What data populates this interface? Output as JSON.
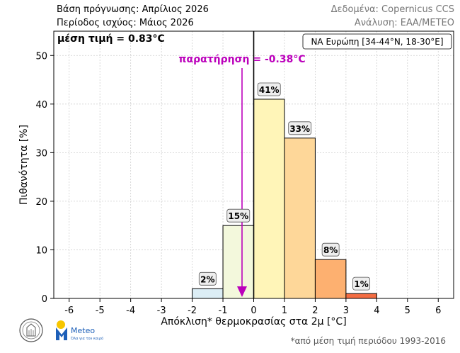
{
  "header": {
    "base_label": "Βάση πρόγνωσης: Απρίλιος 2026",
    "period_label": "Περίοδος ισχύος: Μάιος 2026",
    "data_source": "Δεδομένα: Copernicus CCS",
    "analysis": "Ανάλυση: ΕΑΑ/METEO"
  },
  "footnote": "*από μέση τιμή περιόδου 1993-2016",
  "logo": {
    "meteo_text": "Meteo",
    "meteo_tagline": "Όλα για τον καιρό"
  },
  "chart_data": {
    "type": "bar",
    "title": "",
    "xlabel": "Απόκλιση* θερμοκρασίας στα 2μ [°C]",
    "ylabel": "Πιθανότητα [%]",
    "xlim": [
      -6.5,
      6.5
    ],
    "ylim": [
      0,
      55
    ],
    "xticks": [
      -6,
      -5,
      -4,
      -3,
      -2,
      -1,
      0,
      1,
      2,
      3,
      4,
      5,
      6
    ],
    "yticks": [
      0,
      10,
      20,
      30,
      40,
      50
    ],
    "grid": true,
    "bins": [
      {
        "from": -2,
        "to": -1,
        "value": 2,
        "label": "2%",
        "color": "#dceef6"
      },
      {
        "from": -1,
        "to": 0,
        "value": 15,
        "label": "15%",
        "color": "#f3f8dc"
      },
      {
        "from": 0,
        "to": 1,
        "value": 41,
        "label": "41%",
        "color": "#fff5b8"
      },
      {
        "from": 1,
        "to": 2,
        "value": 33,
        "label": "33%",
        "color": "#fed799"
      },
      {
        "from": 2,
        "to": 3,
        "value": 8,
        "label": "8%",
        "color": "#fdb070"
      },
      {
        "from": 3,
        "to": 4,
        "value": 1,
        "label": "1%",
        "color": "#f46d43"
      }
    ],
    "mean_label": "μέση τιμή = 0.83°C",
    "zero_line": 0,
    "observation": {
      "value": -0.38,
      "label": "παρατήρηση = -0.38°C",
      "color": "#bb00bb"
    },
    "region_label": "ΝΑ Ευρώπη [34-44°N, 18-30°E]"
  }
}
